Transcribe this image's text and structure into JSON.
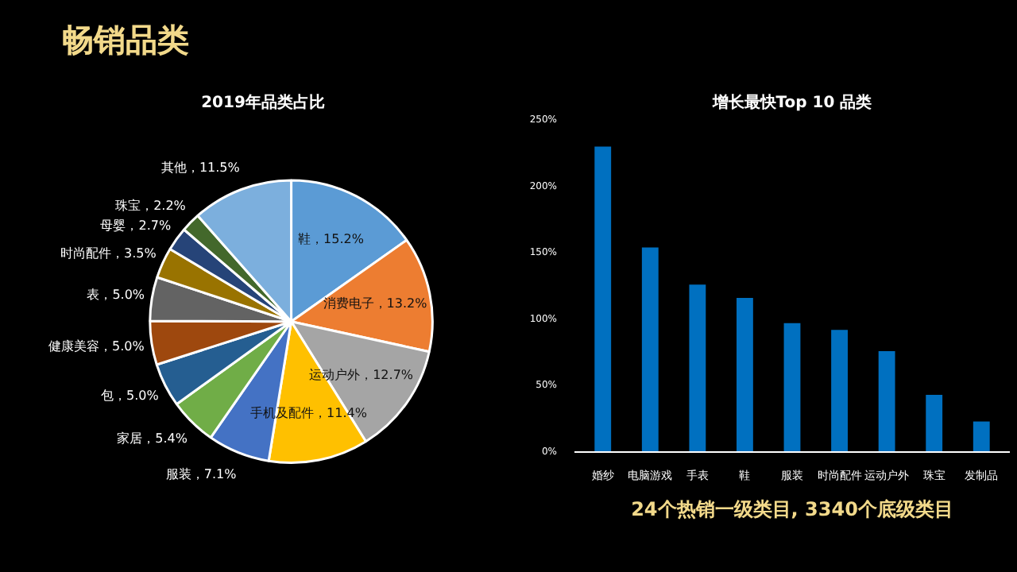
{
  "chart_data": [
    {
      "type": "other",
      "title": "畅销品类"
    },
    {
      "type": "pie",
      "title": "2019年品类占比",
      "categories": [
        "鞋",
        "消费电子",
        "运动户外",
        "手机及配件",
        "服装",
        "家居",
        "包",
        "健康美容",
        "表",
        "时尚配件",
        "母婴",
        "珠宝",
        "其他"
      ],
      "values": [
        15.2,
        13.2,
        12.7,
        11.4,
        7.1,
        5.4,
        5.0,
        5.0,
        5.0,
        3.5,
        2.7,
        2.2,
        11.5
      ],
      "value_labels": [
        "，15.2%",
        "，13.2%",
        "，12.7%",
        "，11.4%",
        "，7.1%",
        "，5.4%",
        "，5.0%",
        "，5.0%",
        "，5.0%",
        "，3.5%",
        "，2.7%",
        "，2.2%",
        "，11.5%"
      ],
      "colors": [
        "#5b9bd5",
        "#ed7d31",
        "#a5a5a5",
        "#ffc000",
        "#4472c4",
        "#70ad47",
        "#255e91",
        "#9e480e",
        "#636363",
        "#997300",
        "#264478",
        "#43682b",
        "#7cafdd"
      ]
    },
    {
      "type": "bar",
      "title": "增长最快Top 10 品类",
      "categories": [
        "婚纱",
        "电脑游戏",
        "手表",
        "鞋",
        "服装",
        "时尚配件",
        "运动户外",
        "珠宝",
        "发制品"
      ],
      "values": [
        230,
        154,
        126,
        116,
        97,
        92,
        76,
        43,
        23
      ],
      "color": "#0070c0",
      "ylim": [
        0,
        250
      ],
      "yticks": [
        {
          "value": 0,
          "label": "0%"
        },
        {
          "value": 50,
          "label": "50%"
        },
        {
          "value": 100,
          "label": "100%"
        },
        {
          "value": 150,
          "label": "150%"
        },
        {
          "value": 200,
          "label": "200%"
        },
        {
          "value": 250,
          "label": "250%"
        }
      ],
      "grid": false,
      "annotations": [
        "24个热销一级类目, 3340个底级类目"
      ]
    }
  ]
}
